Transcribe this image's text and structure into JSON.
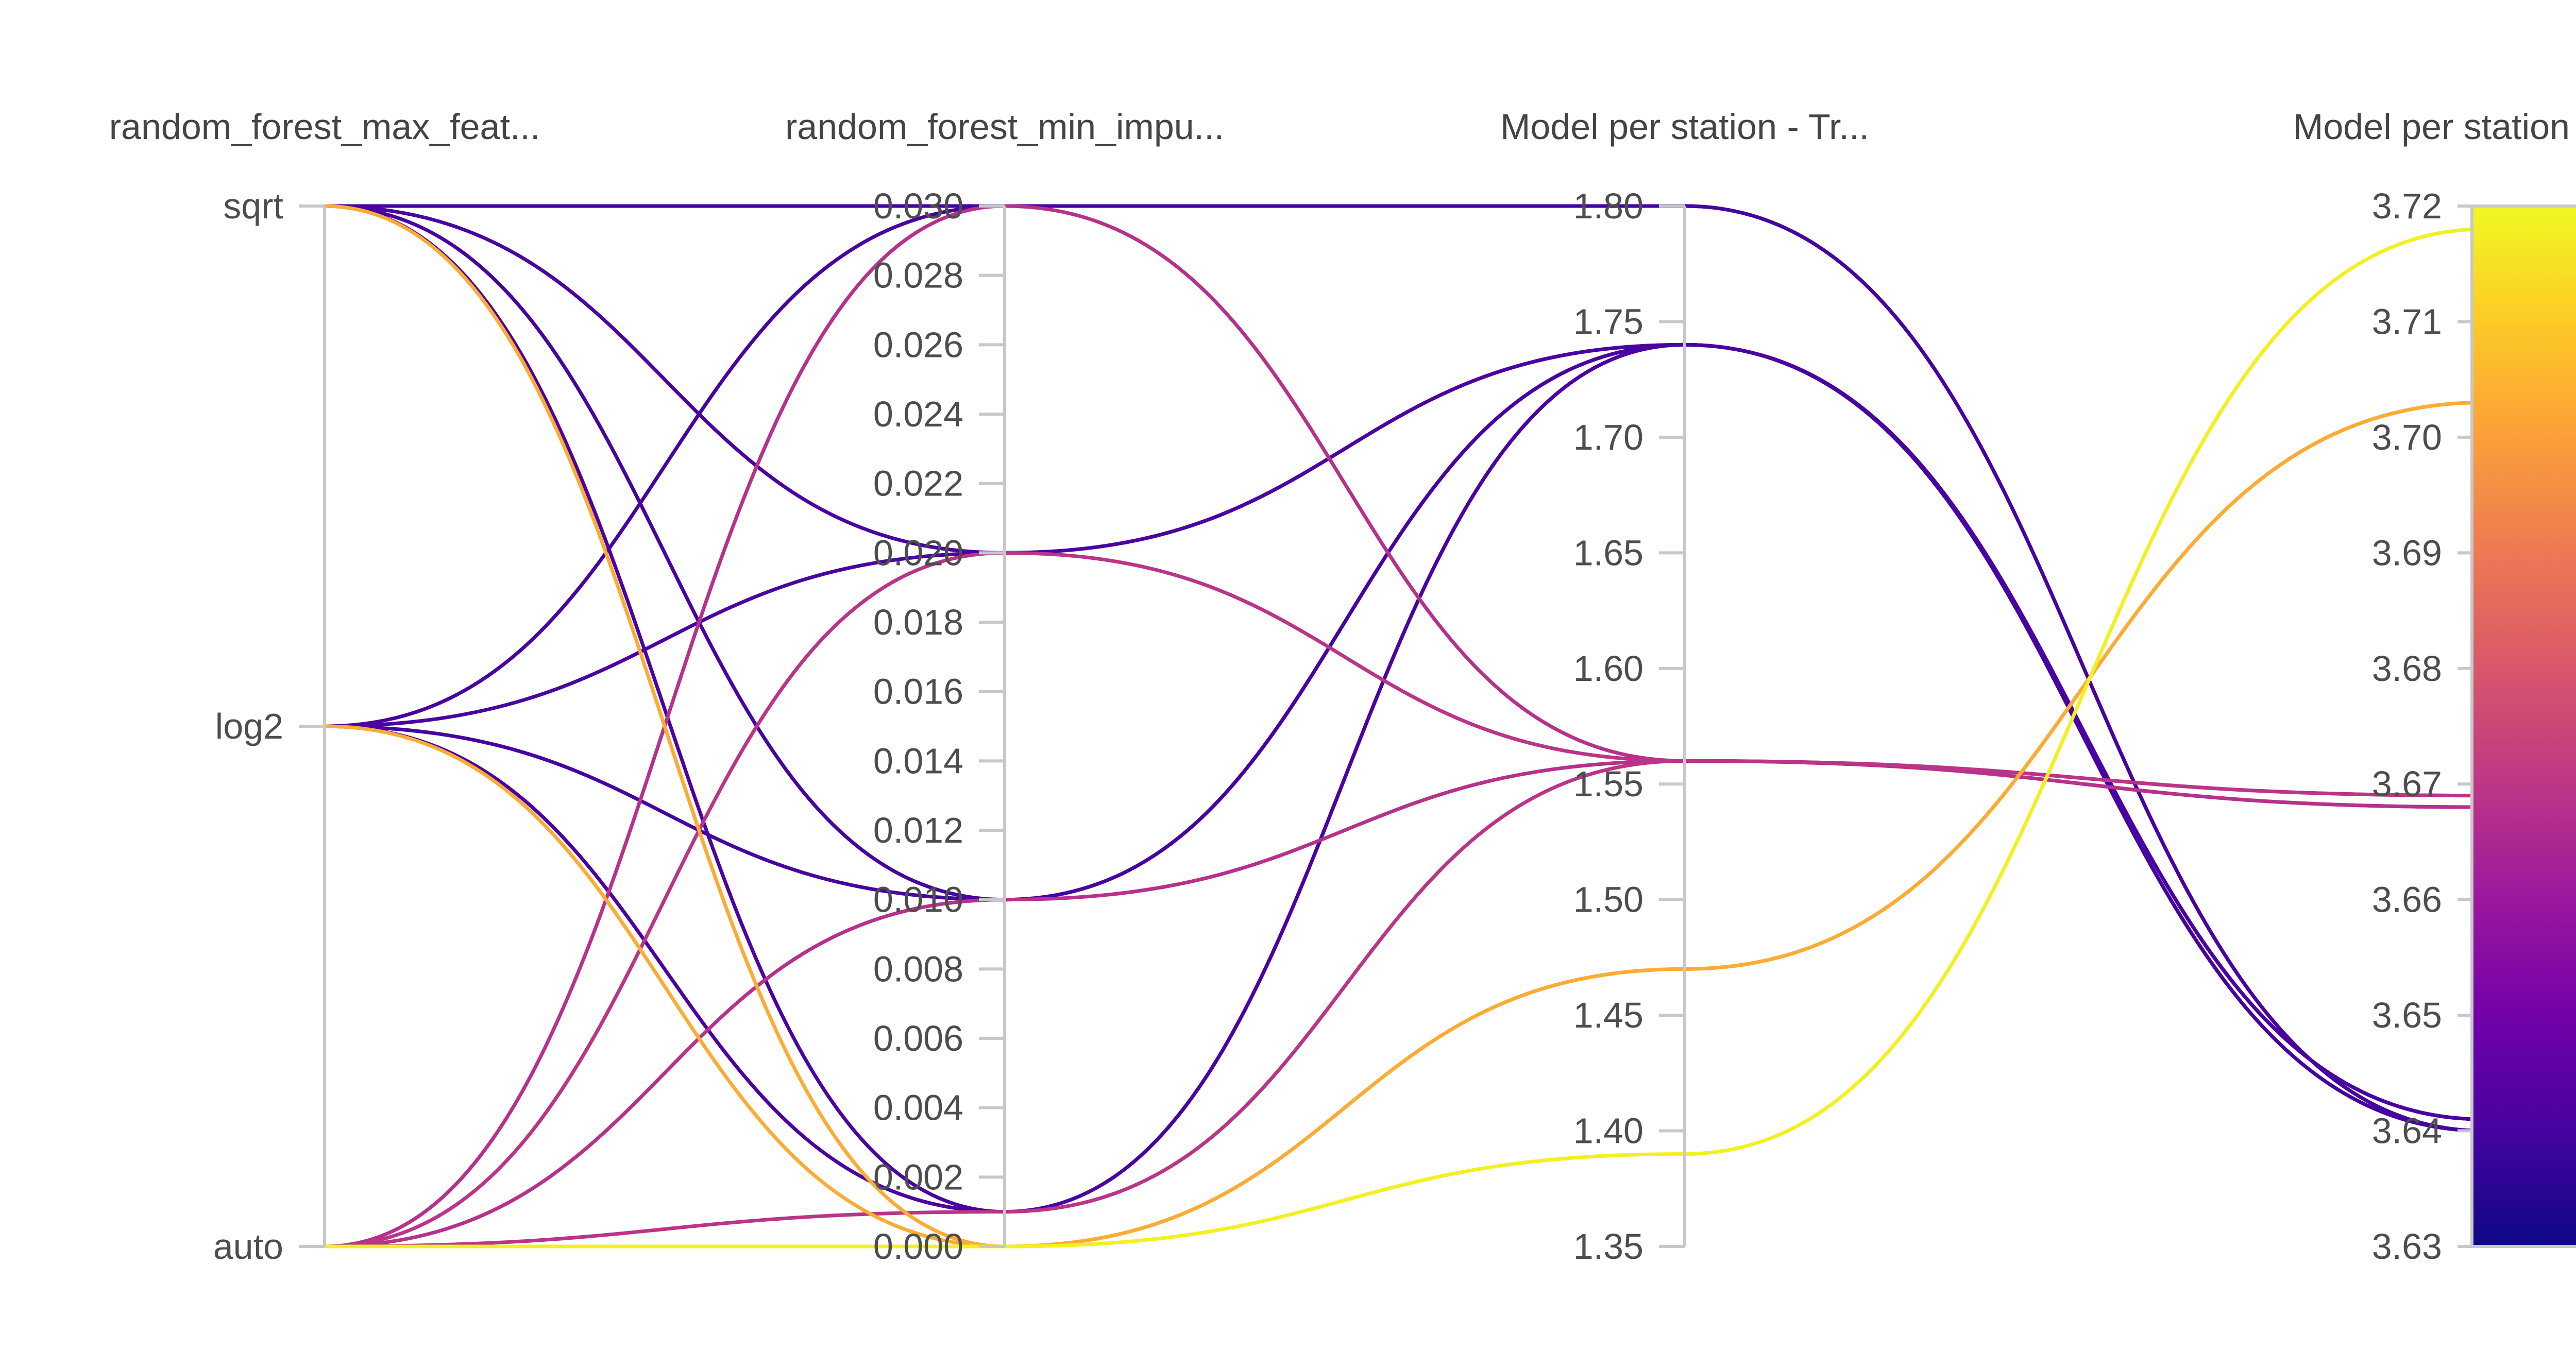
{
  "chart_data": {
    "type": "parallel_coordinates",
    "axes": [
      {
        "label": "random_forest_max_feat...",
        "kind": "categorical",
        "categories": [
          "sqrt",
          "log2",
          "auto"
        ]
      },
      {
        "label": "random_forest_min_impu...",
        "kind": "numeric",
        "range": [
          0,
          0.03
        ],
        "ticks": [
          "0.030",
          "0.028",
          "0.026",
          "0.024",
          "0.022",
          "0.020",
          "0.018",
          "0.016",
          "0.014",
          "0.012",
          "0.010",
          "0.008",
          "0.006",
          "0.004",
          "0.002",
          "0.000"
        ]
      },
      {
        "label": "Model per station - Tr...",
        "kind": "numeric",
        "range": [
          1.35,
          1.8
        ],
        "ticks": [
          "1.80",
          "1.75",
          "1.70",
          "1.65",
          "1.60",
          "1.55",
          "1.50",
          "1.45",
          "1.40",
          "1.35"
        ]
      },
      {
        "label": "Model per station - Va...",
        "kind": "numeric",
        "range": [
          3.63,
          3.72
        ],
        "ticks": [
          "3.72",
          "3.71",
          "3.70",
          "3.69",
          "3.68",
          "3.67",
          "3.66",
          "3.65",
          "3.64",
          "3.63"
        ]
      }
    ],
    "colorscale": {
      "min": 3.63,
      "max": 3.72,
      "stops": [
        "#0d0887",
        "#46039f",
        "#7201a8",
        "#9c179e",
        "#bd3786",
        "#d8576b",
        "#ed7953",
        "#fb9f3a",
        "#fdca26",
        "#f0f921"
      ]
    },
    "lines": [
      {
        "max_features": "sqrt",
        "min_impurity": 0.03,
        "train": 1.8,
        "val": 3.64
      },
      {
        "max_features": "sqrt",
        "min_impurity": 0.02,
        "train": 1.74,
        "val": 3.641
      },
      {
        "max_features": "sqrt",
        "min_impurity": 0.01,
        "train": 1.74,
        "val": 3.64
      },
      {
        "max_features": "sqrt",
        "min_impurity": 0.001,
        "train": 1.74,
        "val": 3.641
      },
      {
        "max_features": "sqrt",
        "min_impurity": 0.0,
        "train": 1.47,
        "val": 3.703
      },
      {
        "max_features": "log2",
        "min_impurity": 0.03,
        "train": 1.8,
        "val": 3.64
      },
      {
        "max_features": "log2",
        "min_impurity": 0.02,
        "train": 1.74,
        "val": 3.641
      },
      {
        "max_features": "log2",
        "min_impurity": 0.01,
        "train": 1.74,
        "val": 3.64
      },
      {
        "max_features": "log2",
        "min_impurity": 0.001,
        "train": 1.74,
        "val": 3.641
      },
      {
        "max_features": "log2",
        "min_impurity": 0.0,
        "train": 1.47,
        "val": 3.703
      },
      {
        "max_features": "auto",
        "min_impurity": 0.03,
        "train": 1.56,
        "val": 3.668
      },
      {
        "max_features": "auto",
        "min_impurity": 0.02,
        "train": 1.56,
        "val": 3.669
      },
      {
        "max_features": "auto",
        "min_impurity": 0.01,
        "train": 1.56,
        "val": 3.668
      },
      {
        "max_features": "auto",
        "min_impurity": 0.001,
        "train": 1.56,
        "val": 3.669
      },
      {
        "max_features": "auto",
        "min_impurity": 0.0,
        "train": 1.39,
        "val": 3.718
      }
    ]
  }
}
